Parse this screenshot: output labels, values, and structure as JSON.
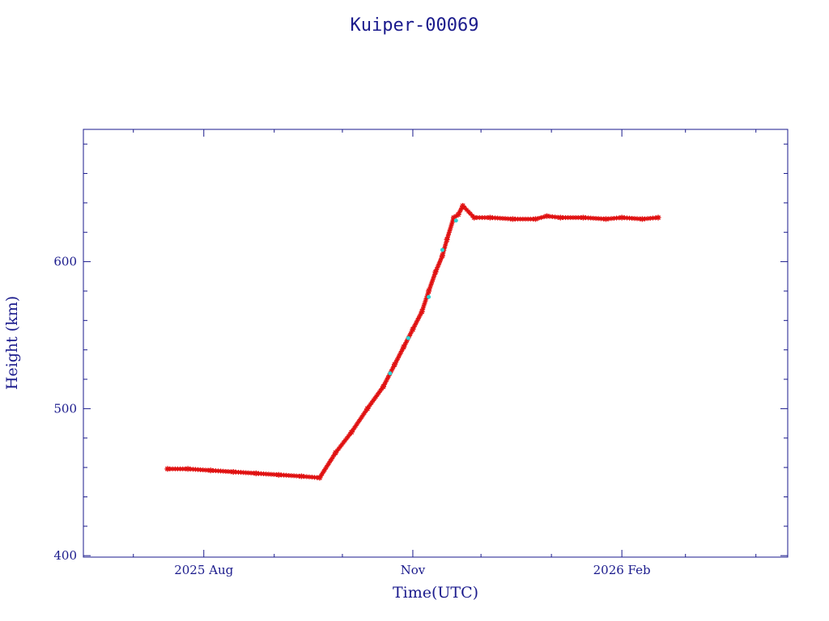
{
  "chart_data": {
    "type": "scatter",
    "title": "Kuiper-00069",
    "xlabel": "Time(UTC)",
    "ylabel": "Height (km)",
    "x_type": "date",
    "xlim": [
      "2025-06-09",
      "2026-04-15"
    ],
    "ylim": [
      399,
      690
    ],
    "x_ticks": [
      {
        "date": "2025-08-01",
        "label": "2025 Aug"
      },
      {
        "date": "2025-11-01",
        "label": "Nov"
      },
      {
        "date": "2026-02-01",
        "label": "2026 Feb"
      }
    ],
    "x_minor_ticks": [
      "2025-07-01",
      "2025-09-01",
      "2025-10-01",
      "2025-12-01",
      "2026-01-01",
      "2026-03-01",
      "2026-04-01"
    ],
    "y_ticks": [
      400,
      500,
      600
    ],
    "y_minor_step": 20,
    "grid": false,
    "colors": {
      "frame": "#1a1a8c",
      "primary": "#e01010",
      "secondary": "#2bd4d4"
    },
    "series": [
      {
        "color": "#e01010",
        "marker": "star",
        "x": [
          "2025-07-16",
          "2025-07-25",
          "2025-08-04",
          "2025-08-14",
          "2025-08-24",
          "2025-09-03",
          "2025-09-13",
          "2025-09-21",
          "2025-09-28",
          "2025-10-05",
          "2025-10-12",
          "2025-10-19",
          "2025-10-24",
          "2025-10-28",
          "2025-11-01",
          "2025-11-05",
          "2025-11-08",
          "2025-11-11",
          "2025-11-14",
          "2025-11-16",
          "2025-11-19",
          "2025-11-21",
          "2025-11-23",
          "2025-11-28",
          "2025-12-05",
          "2025-12-15",
          "2025-12-25",
          "2025-12-30",
          "2026-01-05",
          "2026-01-15",
          "2026-01-25",
          "2026-02-01",
          "2026-02-10",
          "2026-02-17"
        ],
        "y": [
          459,
          459,
          458,
          457,
          456,
          455,
          454,
          453,
          470,
          484,
          500,
          515,
          530,
          542,
          554,
          566,
          580,
          593,
          604,
          615,
          630,
          632,
          638,
          630,
          630,
          629,
          629,
          631,
          630,
          630,
          629,
          630,
          629,
          630
        ]
      },
      {
        "color": "#2bd4d4",
        "marker": "dot",
        "x": [
          "2025-10-22",
          "2025-10-30",
          "2025-11-08",
          "2025-11-14",
          "2025-11-20"
        ],
        "y": [
          524,
          548,
          576,
          608,
          628
        ]
      }
    ]
  }
}
